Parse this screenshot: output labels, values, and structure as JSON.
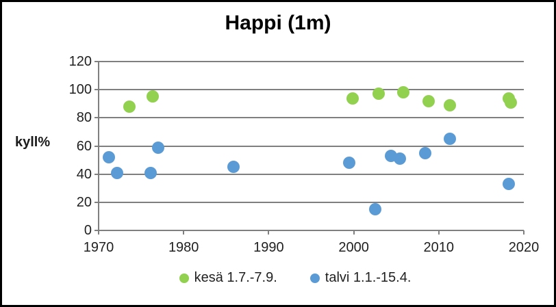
{
  "chart_data": {
    "type": "scatter",
    "title": "Happi (1m)",
    "xlabel": "",
    "ylabel": "kyll%",
    "xlim": [
      1970,
      2020
    ],
    "ylim": [
      0,
      120
    ],
    "x_ticks": [
      1970,
      1980,
      1990,
      2000,
      2010,
      2020
    ],
    "y_ticks": [
      0,
      20,
      40,
      60,
      80,
      100,
      120
    ],
    "grid": "horizontal",
    "legend_position": "bottom",
    "colors": {
      "summer_series": "#92d050",
      "winter_series": "#5b9bd5",
      "gridline": "#7f7f7f",
      "axis": "#7f7f7f",
      "text": "#1f1f1f"
    },
    "series": [
      {
        "name": "kesä 1.7.-7.9.",
        "color": "#92d050",
        "points": [
          [
            1973.6,
            88
          ],
          [
            1976.4,
            95
          ],
          [
            1999.9,
            94
          ],
          [
            2002.9,
            97
          ],
          [
            2005.8,
            98
          ],
          [
            2008.8,
            92
          ],
          [
            2011.3,
            89
          ],
          [
            2018.2,
            94
          ],
          [
            2018.5,
            91
          ]
        ]
      },
      {
        "name": "talvi 1.1.-15.4.",
        "color": "#5b9bd5",
        "points": [
          [
            1971.2,
            52
          ],
          [
            1972.2,
            41
          ],
          [
            1976.1,
            41
          ],
          [
            1977.0,
            59
          ],
          [
            1985.9,
            45
          ],
          [
            1999.5,
            48
          ],
          [
            2002.5,
            15
          ],
          [
            2004.4,
            53
          ],
          [
            2005.4,
            51
          ],
          [
            2008.4,
            55
          ],
          [
            2011.3,
            65
          ],
          [
            2018.2,
            33
          ]
        ]
      }
    ]
  }
}
